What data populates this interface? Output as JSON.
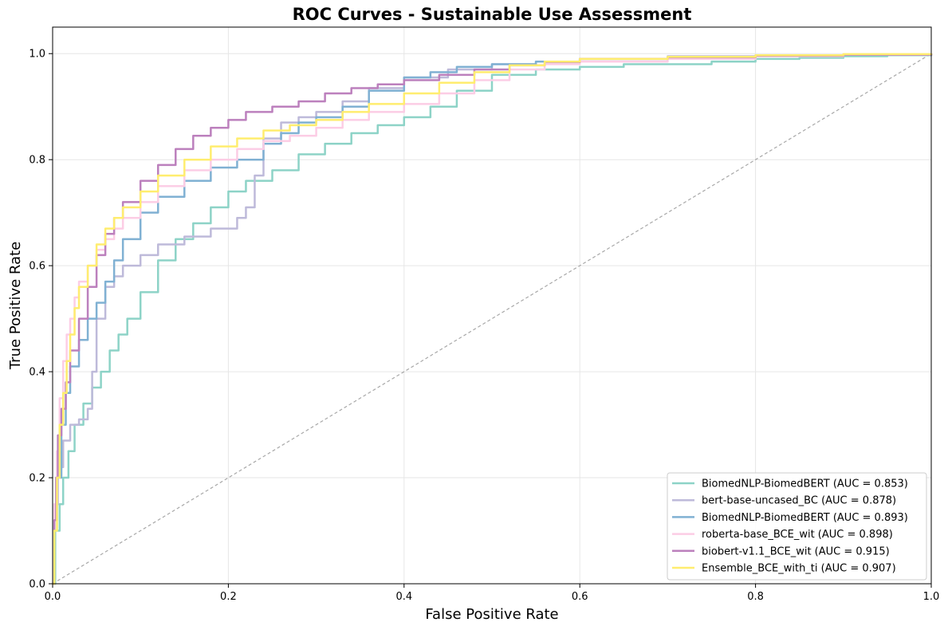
{
  "chart_data": {
    "type": "line",
    "title": "ROC Curves - Sustainable Use Assessment",
    "xlabel": "False Positive Rate",
    "ylabel": "True Positive Rate",
    "xlim": [
      0,
      1
    ],
    "ylim": [
      0,
      1.05
    ],
    "xticks": [
      0.0,
      0.2,
      0.4,
      0.6,
      0.8,
      1.0
    ],
    "yticks": [
      0.0,
      0.2,
      0.4,
      0.6,
      0.8,
      1.0
    ],
    "xtick_labels": [
      "0.0",
      "0.2",
      "0.4",
      "0.6",
      "0.8",
      "1.0"
    ],
    "ytick_labels": [
      "0.0",
      "0.2",
      "0.4",
      "0.6",
      "0.8",
      "1.0"
    ],
    "grid": true,
    "legend_position": "lower-right",
    "diagonal": {
      "x": [
        0,
        1
      ],
      "y": [
        0,
        1
      ],
      "color": "#a8a8a8",
      "style": "dashed"
    },
    "series": [
      {
        "name": "BiomedNLP-BiomedBERT (AUC = 0.853)",
        "color": "#8dd3c7",
        "x": [
          0,
          0.003,
          0.008,
          0.012,
          0.018,
          0.025,
          0.035,
          0.045,
          0.055,
          0.065,
          0.075,
          0.085,
          0.1,
          0.12,
          0.14,
          0.16,
          0.18,
          0.2,
          0.22,
          0.25,
          0.28,
          0.31,
          0.34,
          0.37,
          0.4,
          0.43,
          0.46,
          0.5,
          0.55,
          0.6,
          0.65,
          0.7,
          0.75,
          0.8,
          0.85,
          0.9,
          0.95,
          1.0
        ],
        "y": [
          0,
          0.1,
          0.15,
          0.2,
          0.25,
          0.3,
          0.34,
          0.37,
          0.4,
          0.44,
          0.47,
          0.5,
          0.55,
          0.61,
          0.65,
          0.68,
          0.71,
          0.74,
          0.76,
          0.78,
          0.81,
          0.83,
          0.85,
          0.865,
          0.88,
          0.9,
          0.93,
          0.96,
          0.97,
          0.975,
          0.98,
          0.98,
          0.985,
          0.99,
          0.992,
          0.995,
          0.997,
          1.0
        ]
      },
      {
        "name": "bert-base-uncased_BC (AUC = 0.878)",
        "color": "#bebada",
        "x": [
          0,
          0.002,
          0.006,
          0.012,
          0.02,
          0.03,
          0.04,
          0.045,
          0.05,
          0.06,
          0.07,
          0.08,
          0.1,
          0.12,
          0.15,
          0.18,
          0.21,
          0.22,
          0.23,
          0.24,
          0.26,
          0.28,
          0.3,
          0.33,
          0.36,
          0.4,
          0.45,
          0.5,
          0.55,
          0.6,
          0.7,
          0.8,
          0.9,
          1.0
        ],
        "y": [
          0,
          0.15,
          0.22,
          0.27,
          0.3,
          0.31,
          0.33,
          0.4,
          0.5,
          0.56,
          0.58,
          0.6,
          0.62,
          0.64,
          0.655,
          0.67,
          0.69,
          0.71,
          0.77,
          0.84,
          0.87,
          0.88,
          0.89,
          0.91,
          0.935,
          0.955,
          0.97,
          0.98,
          0.985,
          0.99,
          0.995,
          0.997,
          0.998,
          1.0
        ]
      },
      {
        "name": "BiomedNLP-BiomedBERT (AUC = 0.893)",
        "color": "#80b1d3",
        "x": [
          0,
          0.002,
          0.005,
          0.01,
          0.015,
          0.02,
          0.03,
          0.04,
          0.05,
          0.06,
          0.07,
          0.08,
          0.1,
          0.12,
          0.15,
          0.18,
          0.21,
          0.24,
          0.26,
          0.28,
          0.3,
          0.33,
          0.36,
          0.4,
          0.43,
          0.46,
          0.5,
          0.55,
          0.6,
          0.7,
          0.8,
          0.9,
          1.0
        ],
        "y": [
          0,
          0.12,
          0.2,
          0.3,
          0.36,
          0.41,
          0.46,
          0.5,
          0.53,
          0.57,
          0.61,
          0.65,
          0.7,
          0.73,
          0.76,
          0.785,
          0.8,
          0.83,
          0.85,
          0.87,
          0.88,
          0.9,
          0.93,
          0.955,
          0.965,
          0.975,
          0.98,
          0.985,
          0.99,
          0.993,
          0.996,
          0.998,
          1.0
        ]
      },
      {
        "name": "roberta-base_BCE_wit (AUC = 0.898)",
        "color": "#fccde5",
        "x": [
          0,
          0.002,
          0.005,
          0.008,
          0.012,
          0.016,
          0.02,
          0.025,
          0.03,
          0.04,
          0.05,
          0.06,
          0.07,
          0.08,
          0.1,
          0.12,
          0.15,
          0.18,
          0.21,
          0.24,
          0.27,
          0.3,
          0.33,
          0.36,
          0.4,
          0.44,
          0.48,
          0.52,
          0.56,
          0.6,
          0.7,
          0.8,
          0.9,
          1.0
        ],
        "y": [
          0,
          0.15,
          0.25,
          0.35,
          0.42,
          0.47,
          0.5,
          0.54,
          0.57,
          0.6,
          0.63,
          0.65,
          0.67,
          0.69,
          0.72,
          0.75,
          0.78,
          0.8,
          0.82,
          0.835,
          0.845,
          0.86,
          0.875,
          0.89,
          0.905,
          0.925,
          0.95,
          0.97,
          0.98,
          0.985,
          0.99,
          0.995,
          0.998,
          1.0
        ]
      },
      {
        "name": "biobert-v1.1_BCE_wit (AUC = 0.915)",
        "color": "#bc80bd",
        "x": [
          0,
          0.002,
          0.004,
          0.006,
          0.01,
          0.015,
          0.02,
          0.03,
          0.04,
          0.05,
          0.06,
          0.07,
          0.08,
          0.1,
          0.12,
          0.14,
          0.16,
          0.18,
          0.2,
          0.22,
          0.25,
          0.28,
          0.31,
          0.34,
          0.37,
          0.4,
          0.44,
          0.48,
          0.52,
          0.56,
          0.6,
          0.7,
          0.8,
          0.9,
          1.0
        ],
        "y": [
          0,
          0.12,
          0.2,
          0.28,
          0.33,
          0.38,
          0.44,
          0.5,
          0.56,
          0.62,
          0.66,
          0.69,
          0.72,
          0.76,
          0.79,
          0.82,
          0.845,
          0.86,
          0.875,
          0.89,
          0.9,
          0.91,
          0.925,
          0.935,
          0.942,
          0.95,
          0.96,
          0.97,
          0.978,
          0.984,
          0.99,
          0.993,
          0.996,
          0.998,
          1.0
        ]
      },
      {
        "name": "Ensemble_BCE_with_ti (AUC = 0.907)",
        "color": "#ffed6f",
        "x": [
          0,
          0.002,
          0.005,
          0.008,
          0.012,
          0.016,
          0.02,
          0.025,
          0.03,
          0.04,
          0.05,
          0.06,
          0.07,
          0.08,
          0.1,
          0.12,
          0.15,
          0.18,
          0.21,
          0.24,
          0.27,
          0.3,
          0.33,
          0.36,
          0.4,
          0.44,
          0.48,
          0.52,
          0.56,
          0.6,
          0.7,
          0.8,
          0.9,
          1.0
        ],
        "y": [
          0,
          0.1,
          0.2,
          0.3,
          0.36,
          0.42,
          0.47,
          0.52,
          0.56,
          0.6,
          0.64,
          0.67,
          0.69,
          0.71,
          0.74,
          0.77,
          0.8,
          0.825,
          0.84,
          0.855,
          0.865,
          0.875,
          0.89,
          0.905,
          0.925,
          0.945,
          0.965,
          0.978,
          0.985,
          0.99,
          0.994,
          0.997,
          0.999,
          1.0
        ]
      }
    ]
  }
}
